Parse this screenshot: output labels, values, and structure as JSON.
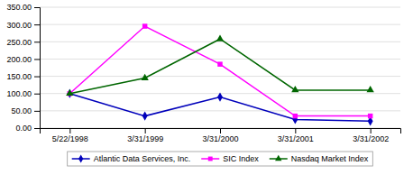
{
  "chart_data": {
    "type": "line",
    "categories": [
      "5/22/1998",
      "3/31/1999",
      "3/31/2000",
      "3/31/2001",
      "3/31/2002"
    ],
    "series": [
      {
        "name": "Atlantic Data Services, Inc.",
        "color": "#0000bb",
        "marker": "diamond",
        "values": [
          100.0,
          35.0,
          90.0,
          25.0,
          20.0
        ]
      },
      {
        "name": "SIC Index",
        "color": "#ff00ff",
        "marker": "square",
        "values": [
          100.0,
          295.0,
          185.0,
          35.0,
          35.0
        ]
      },
      {
        "name": "Nasdaq Market Index",
        "color": "#006600",
        "marker": "triangle",
        "values": [
          100.0,
          145.0,
          258.0,
          110.0,
          110.0
        ]
      }
    ],
    "ylim": [
      0,
      350
    ],
    "yticks": [
      {
        "value": 0,
        "label": "0.00"
      },
      {
        "value": 50,
        "label": "50.00"
      },
      {
        "value": 100,
        "label": "100.00"
      },
      {
        "value": 150,
        "label": "150.00"
      },
      {
        "value": 200,
        "label": "200.00"
      },
      {
        "value": 250,
        "label": "250.00"
      },
      {
        "value": 300,
        "label": "300.00"
      },
      {
        "value": 350,
        "label": "350.00"
      }
    ],
    "grid": true,
    "legend": "bottom"
  }
}
